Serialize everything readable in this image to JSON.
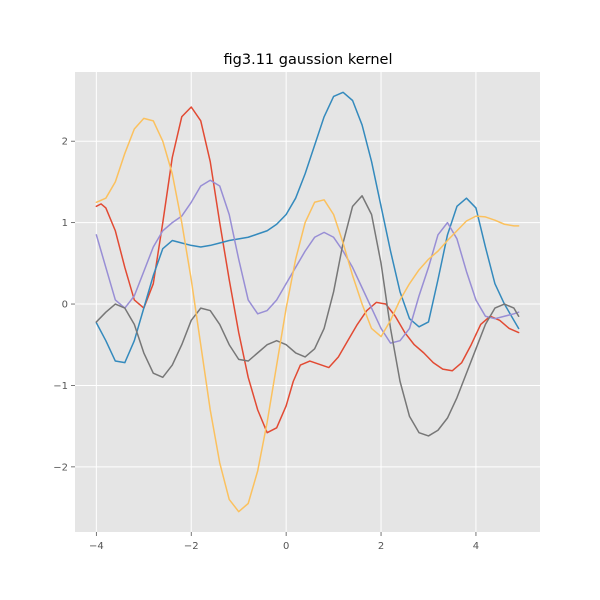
{
  "chart_data": {
    "type": "line",
    "title": "fig3.11 gaussion kernel",
    "xlabel": "",
    "ylabel": "",
    "xlim": [
      -4.45,
      5.35
    ],
    "ylim": [
      -2.8,
      2.85
    ],
    "xticks": [
      -4,
      -2,
      0,
      2,
      4
    ],
    "yticks": [
      -2,
      -1,
      0,
      1,
      2
    ],
    "grid": true,
    "series": [
      {
        "color": "#E24A33",
        "x": [
          -4.0,
          -3.9,
          -3.8,
          -3.6,
          -3.4,
          -3.2,
          -3.0,
          -2.8,
          -2.6,
          -2.4,
          -2.2,
          -2.0,
          -1.8,
          -1.6,
          -1.4,
          -1.2,
          -1.0,
          -0.8,
          -0.6,
          -0.4,
          -0.2,
          0.0,
          0.15,
          0.3,
          0.5,
          0.7,
          0.9,
          1.1,
          1.3,
          1.5,
          1.7,
          1.9,
          2.1,
          2.3,
          2.5,
          2.7,
          2.9,
          3.1,
          3.3,
          3.5,
          3.7,
          3.9,
          4.1,
          4.3,
          4.5,
          4.7,
          4.9
        ],
        "y": [
          1.2,
          1.23,
          1.18,
          0.9,
          0.45,
          0.05,
          -0.05,
          0.25,
          1.0,
          1.8,
          2.3,
          2.42,
          2.25,
          1.75,
          1.0,
          0.3,
          -0.35,
          -0.9,
          -1.3,
          -1.58,
          -1.52,
          -1.25,
          -0.95,
          -0.75,
          -0.7,
          -0.74,
          -0.78,
          -0.65,
          -0.45,
          -0.25,
          -0.08,
          0.02,
          0.0,
          -0.15,
          -0.35,
          -0.5,
          -0.6,
          -0.72,
          -0.8,
          -0.82,
          -0.72,
          -0.5,
          -0.25,
          -0.15,
          -0.2,
          -0.3,
          -0.35
        ]
      },
      {
        "color": "#348ABD",
        "x": [
          -4.0,
          -3.8,
          -3.6,
          -3.4,
          -3.2,
          -3.0,
          -2.8,
          -2.6,
          -2.4,
          -2.2,
          -2.0,
          -1.8,
          -1.6,
          -1.4,
          -1.2,
          -1.0,
          -0.8,
          -0.6,
          -0.4,
          -0.2,
          0.0,
          0.2,
          0.4,
          0.6,
          0.8,
          1.0,
          1.2,
          1.4,
          1.6,
          1.8,
          2.0,
          2.2,
          2.4,
          2.6,
          2.8,
          3.0,
          3.2,
          3.4,
          3.6,
          3.8,
          4.0,
          4.2,
          4.4,
          4.6,
          4.8,
          4.9
        ],
        "y": [
          -0.23,
          -0.45,
          -0.7,
          -0.72,
          -0.45,
          -0.05,
          0.35,
          0.68,
          0.78,
          0.75,
          0.72,
          0.7,
          0.72,
          0.75,
          0.78,
          0.8,
          0.82,
          0.86,
          0.9,
          0.98,
          1.1,
          1.3,
          1.6,
          1.95,
          2.3,
          2.55,
          2.6,
          2.5,
          2.2,
          1.75,
          1.2,
          0.65,
          0.15,
          -0.18,
          -0.28,
          -0.22,
          0.3,
          0.85,
          1.2,
          1.3,
          1.18,
          0.7,
          0.25,
          0.0,
          -0.2,
          -0.3
        ]
      },
      {
        "color": "#988ED5",
        "x": [
          -4.0,
          -3.8,
          -3.6,
          -3.4,
          -3.2,
          -3.0,
          -2.8,
          -2.6,
          -2.4,
          -2.2,
          -2.0,
          -1.8,
          -1.6,
          -1.4,
          -1.2,
          -1.0,
          -0.8,
          -0.6,
          -0.4,
          -0.2,
          0.0,
          0.2,
          0.4,
          0.6,
          0.8,
          1.0,
          1.2,
          1.4,
          1.6,
          1.8,
          2.0,
          2.2,
          2.4,
          2.6,
          2.8,
          3.0,
          3.2,
          3.4,
          3.6,
          3.8,
          4.0,
          4.2,
          4.4,
          4.6,
          4.8,
          4.9
        ],
        "y": [
          0.85,
          0.45,
          0.05,
          -0.05,
          0.1,
          0.4,
          0.7,
          0.9,
          1.0,
          1.08,
          1.25,
          1.45,
          1.52,
          1.45,
          1.1,
          0.55,
          0.05,
          -0.12,
          -0.08,
          0.05,
          0.25,
          0.45,
          0.65,
          0.82,
          0.88,
          0.82,
          0.65,
          0.45,
          0.2,
          -0.05,
          -0.3,
          -0.48,
          -0.45,
          -0.3,
          0.1,
          0.45,
          0.85,
          1.0,
          0.8,
          0.4,
          0.05,
          -0.15,
          -0.18,
          -0.15,
          -0.12,
          -0.1
        ]
      },
      {
        "color": "#777777",
        "x": [
          -4.0,
          -3.8,
          -3.6,
          -3.4,
          -3.2,
          -3.0,
          -2.8,
          -2.6,
          -2.4,
          -2.2,
          -2.0,
          -1.8,
          -1.6,
          -1.4,
          -1.2,
          -1.0,
          -0.8,
          -0.6,
          -0.4,
          -0.2,
          0.0,
          0.2,
          0.4,
          0.6,
          0.8,
          1.0,
          1.2,
          1.4,
          1.6,
          1.8,
          2.0,
          2.2,
          2.4,
          2.6,
          2.8,
          3.0,
          3.2,
          3.4,
          3.6,
          3.8,
          4.0,
          4.2,
          4.4,
          4.6,
          4.8,
          4.9
        ],
        "y": [
          -0.22,
          -0.1,
          0.0,
          -0.05,
          -0.25,
          -0.6,
          -0.85,
          -0.9,
          -0.75,
          -0.5,
          -0.2,
          -0.05,
          -0.08,
          -0.25,
          -0.5,
          -0.68,
          -0.7,
          -0.6,
          -0.5,
          -0.45,
          -0.5,
          -0.6,
          -0.65,
          -0.55,
          -0.3,
          0.15,
          0.75,
          1.2,
          1.33,
          1.1,
          0.5,
          -0.3,
          -0.95,
          -1.38,
          -1.58,
          -1.62,
          -1.55,
          -1.4,
          -1.15,
          -0.85,
          -0.55,
          -0.25,
          -0.05,
          0.0,
          -0.05,
          -0.15
        ]
      },
      {
        "color": "#FBC15E",
        "x": [
          -4.0,
          -3.8,
          -3.6,
          -3.4,
          -3.2,
          -3.0,
          -2.8,
          -2.6,
          -2.4,
          -2.2,
          -2.0,
          -1.8,
          -1.6,
          -1.4,
          -1.2,
          -1.0,
          -0.8,
          -0.6,
          -0.4,
          -0.2,
          0.0,
          0.2,
          0.4,
          0.6,
          0.8,
          1.0,
          1.2,
          1.4,
          1.6,
          1.8,
          2.0,
          2.2,
          2.4,
          2.6,
          2.8,
          3.0,
          3.2,
          3.4,
          3.6,
          3.8,
          4.0,
          4.2,
          4.4,
          4.6,
          4.8,
          4.9
        ],
        "y": [
          1.25,
          1.3,
          1.5,
          1.85,
          2.15,
          2.28,
          2.25,
          2.0,
          1.6,
          1.0,
          0.3,
          -0.5,
          -1.3,
          -1.95,
          -2.4,
          -2.55,
          -2.45,
          -2.05,
          -1.45,
          -0.75,
          -0.05,
          0.55,
          1.0,
          1.25,
          1.28,
          1.1,
          0.75,
          0.35,
          0.0,
          -0.3,
          -0.4,
          -0.2,
          0.05,
          0.25,
          0.42,
          0.55,
          0.65,
          0.78,
          0.9,
          1.02,
          1.08,
          1.07,
          1.03,
          0.98,
          0.96,
          0.96
        ]
      }
    ]
  }
}
